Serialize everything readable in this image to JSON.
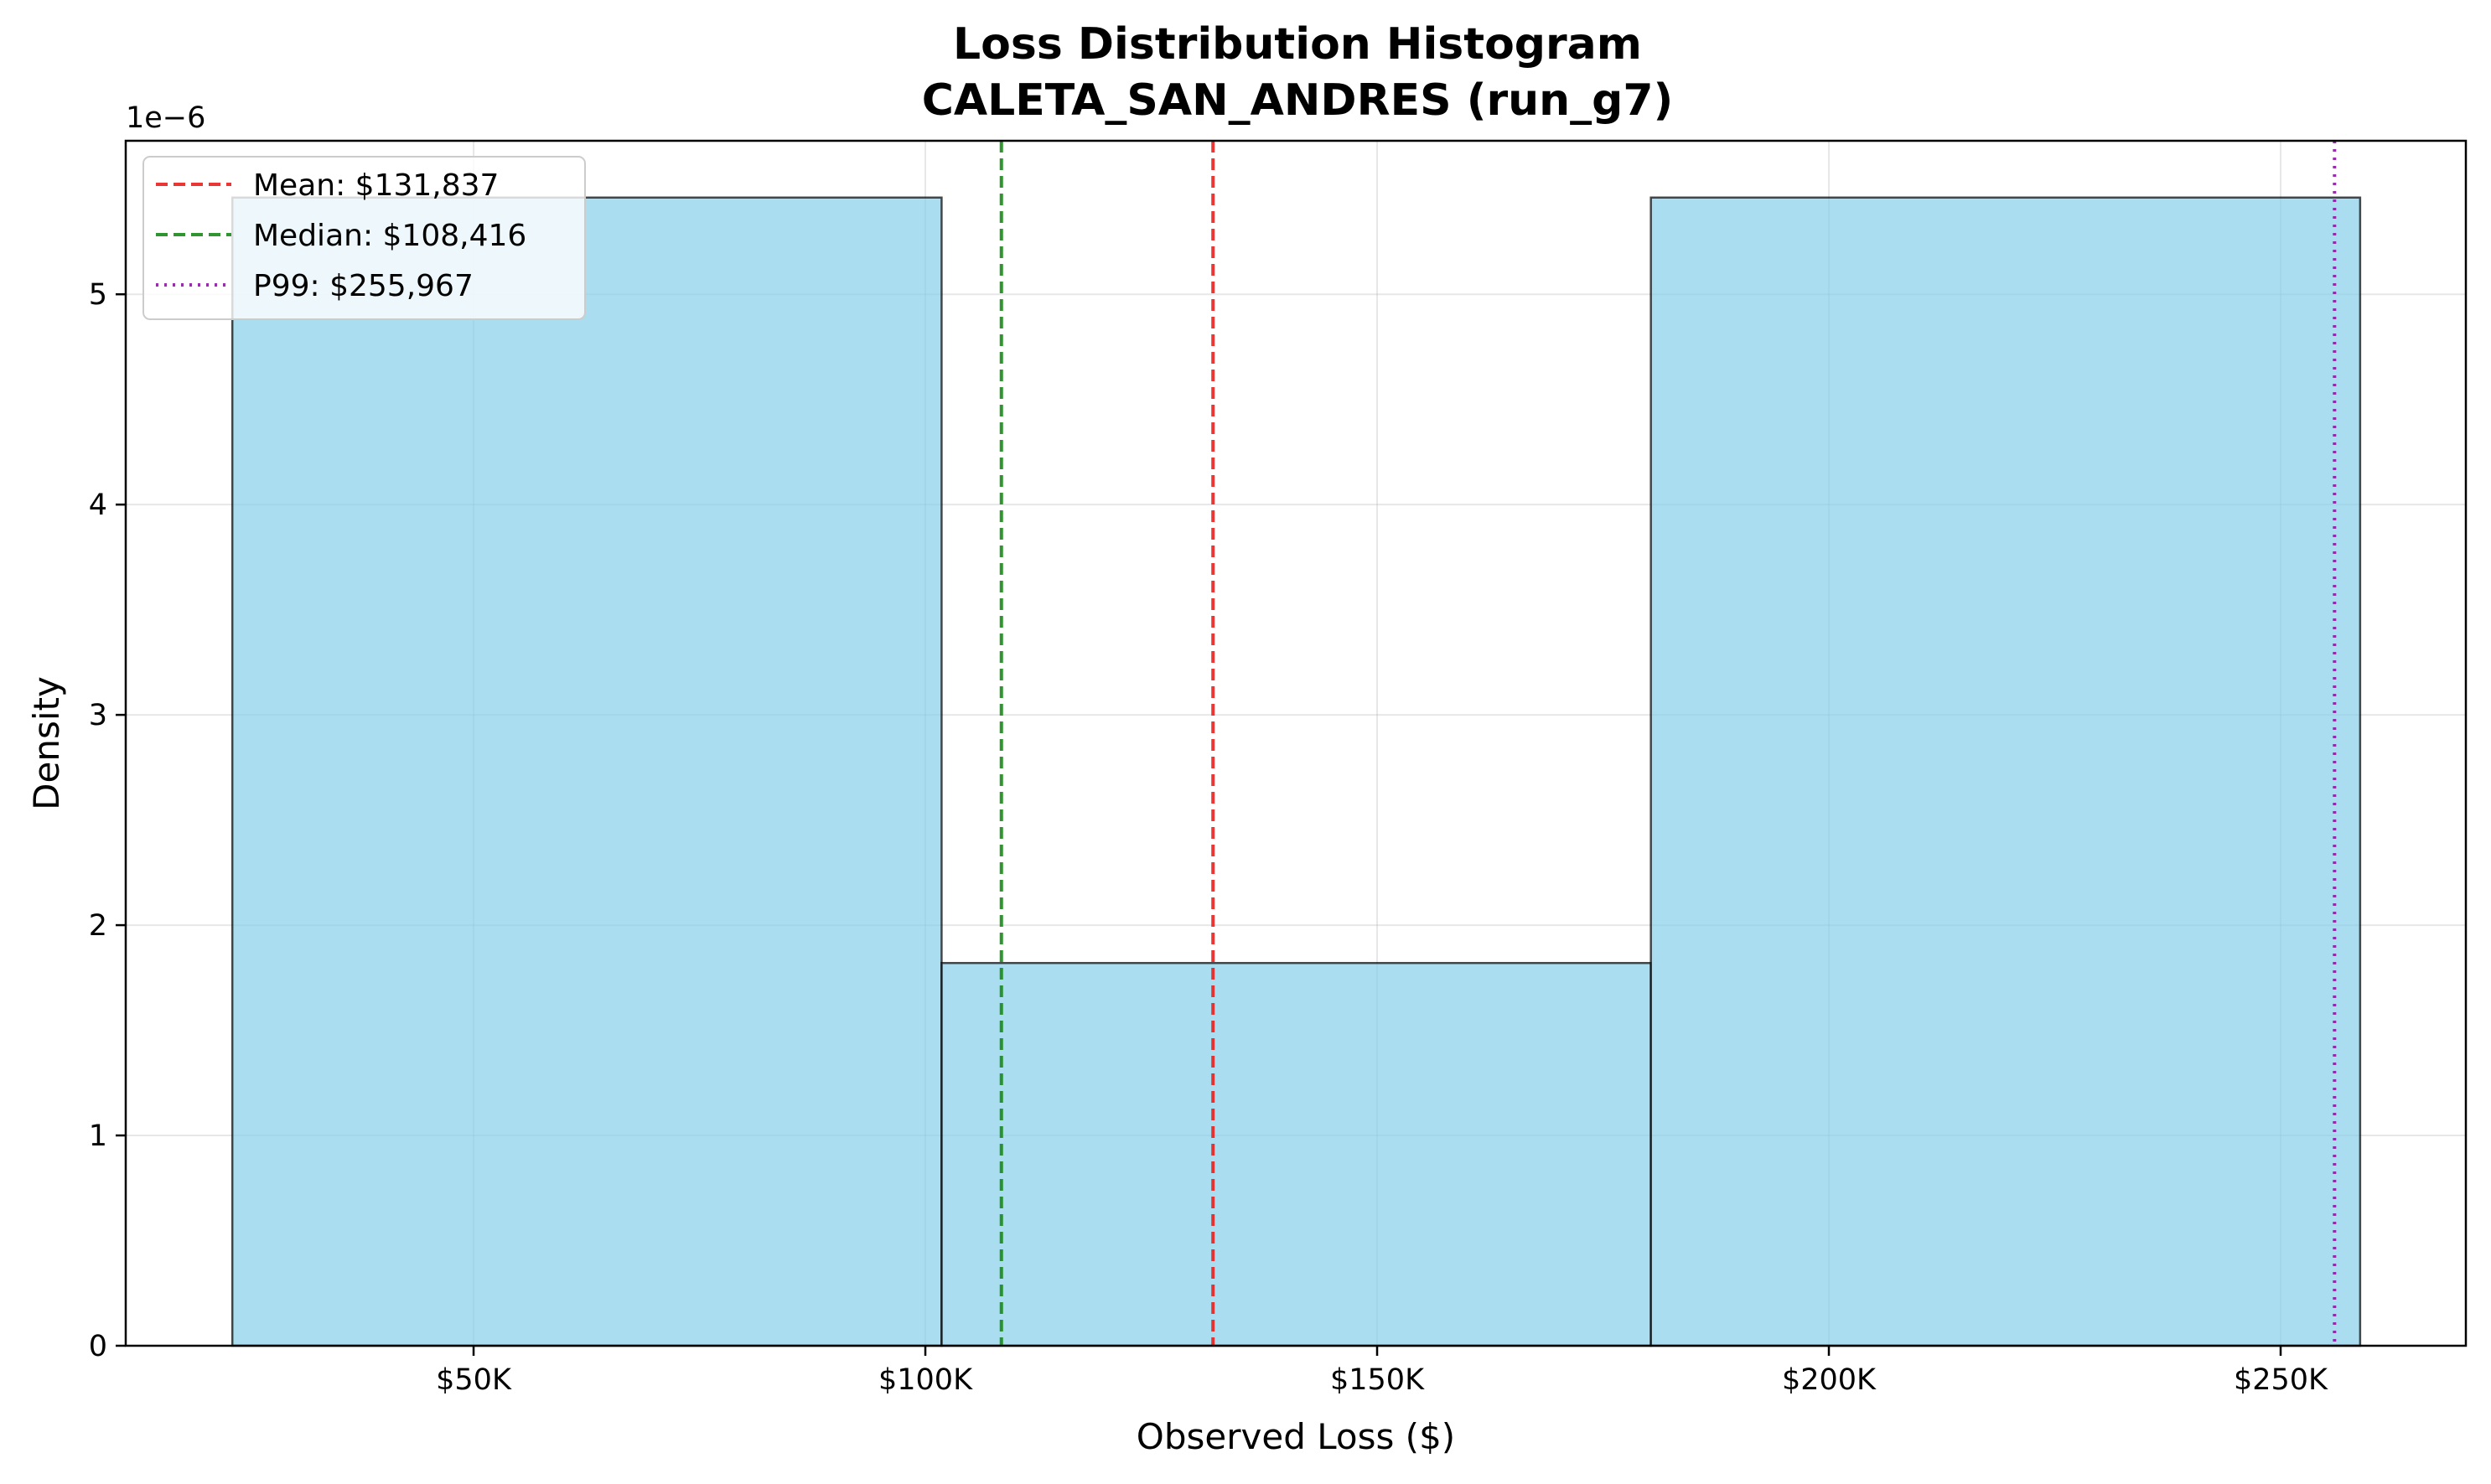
{
  "chart_data": {
    "type": "bar",
    "title": "Loss Distribution Histogram",
    "subtitle": "CALETA_SAN_ANDRES (run_g7)",
    "xlabel": "Observed Loss ($)",
    "ylabel": "Density",
    "y_offset_label": "1e−6",
    "xlim": [
      11500,
      270500
    ],
    "ylim": [
      0,
      5.73
    ],
    "x_ticks": [
      {
        "value": 50000,
        "label": "$50K"
      },
      {
        "value": 100000,
        "label": "$100K"
      },
      {
        "value": 150000,
        "label": "$150K"
      },
      {
        "value": 200000,
        "label": "$200K"
      },
      {
        "value": 250000,
        "label": "$250K"
      }
    ],
    "y_ticks": [
      {
        "value": 0,
        "label": "0"
      },
      {
        "value": 1,
        "label": "1"
      },
      {
        "value": 2,
        "label": "2"
      },
      {
        "value": 3,
        "label": "3"
      },
      {
        "value": 4,
        "label": "4"
      },
      {
        "value": 5,
        "label": "5"
      }
    ],
    "grid": true,
    "bins": [
      {
        "start": 23300,
        "end": 101800,
        "density": 5.46
      },
      {
        "start": 101800,
        "end": 180300,
        "density": 1.82
      },
      {
        "start": 180300,
        "end": 258800,
        "density": 5.46
      }
    ],
    "bar_color": "#87ceeb",
    "reference_lines": [
      {
        "name": "Mean: $131,837",
        "value": 131837,
        "color": "#e8201e",
        "style": "dashed"
      },
      {
        "name": "Median: $108,416",
        "value": 108416,
        "color": "#1a8a1a",
        "style": "dashed"
      },
      {
        "name": "P99: $255,967",
        "value": 255967,
        "color": "#8b1a9e",
        "style": "dotted"
      }
    ],
    "legend_position": "upper-left"
  }
}
